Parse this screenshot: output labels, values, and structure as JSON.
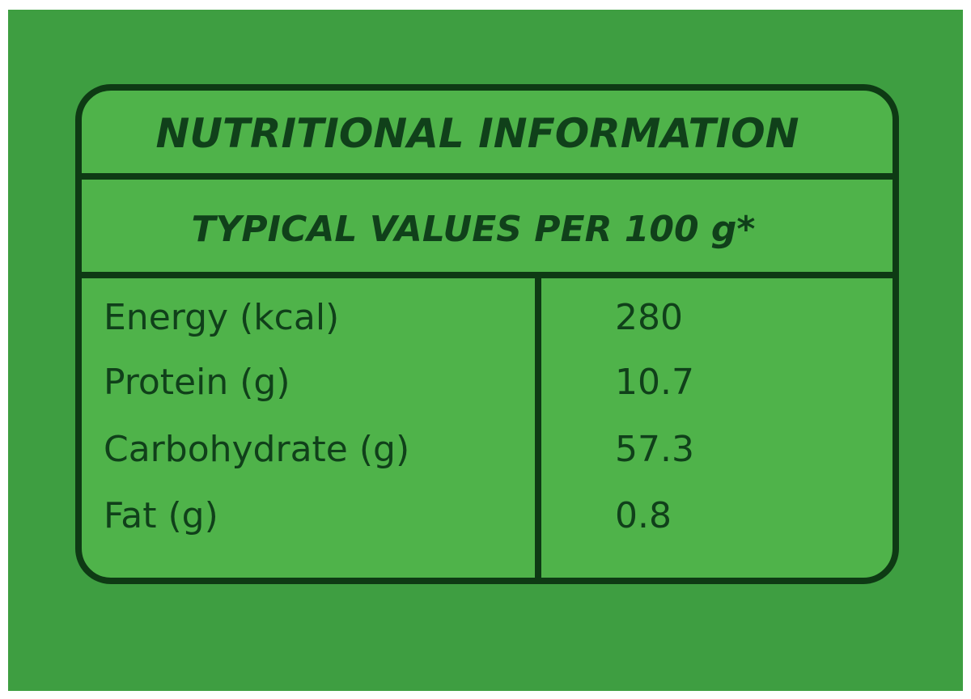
{
  "header": {
    "title": "NUTRITIONAL INFORMATION",
    "subtitle": "TYPICAL VALUES PER 100 g*"
  },
  "table": {
    "rows": [
      [
        "Energy (kcal)",
        "280"
      ],
      [
        "Protein (g)",
        "10.7"
      ],
      [
        "Carbohydrate (g)",
        "57.3"
      ],
      [
        "Fat (g)",
        "0.8"
      ]
    ]
  }
}
